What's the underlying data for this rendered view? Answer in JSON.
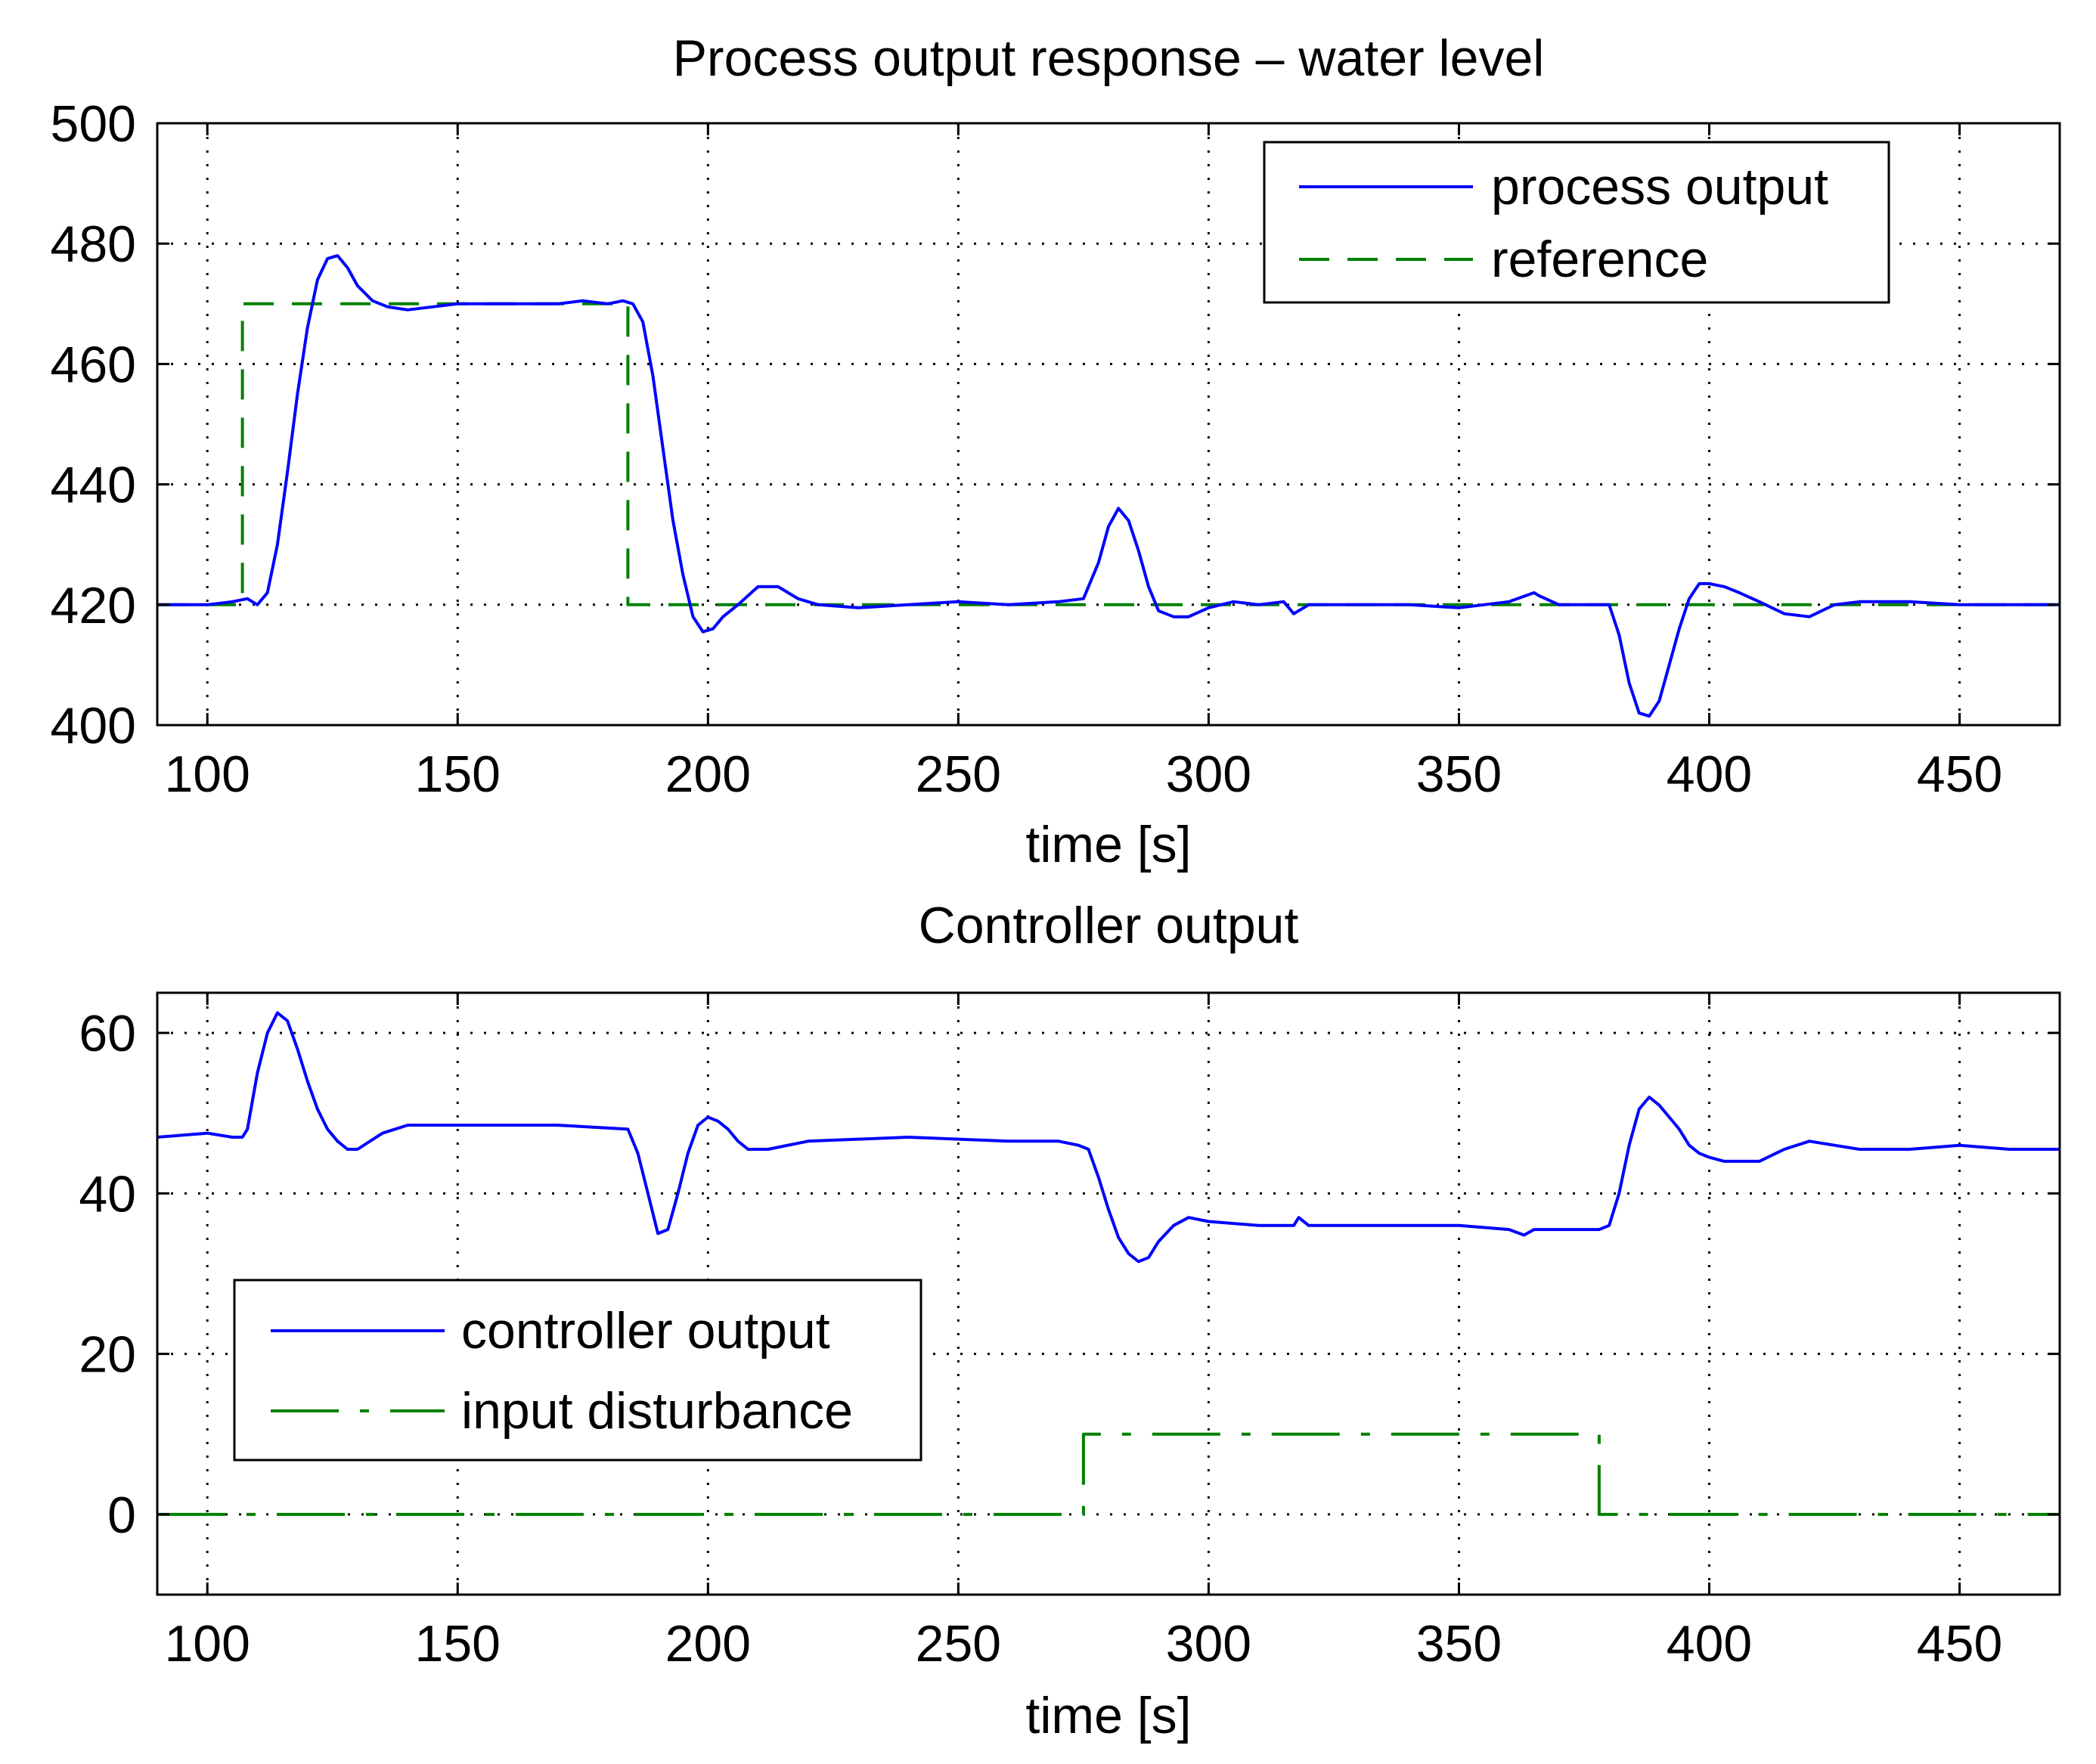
{
  "chart_data": [
    {
      "type": "line",
      "title": "Process output response – water level",
      "xlabel": "time [s]",
      "ylabel": "",
      "xlim": [
        90,
        470
      ],
      "ylim": [
        400,
        500
      ],
      "xticks": [
        100,
        150,
        200,
        250,
        300,
        350,
        400,
        450
      ],
      "yticks": [
        400,
        420,
        440,
        460,
        480,
        500
      ],
      "grid": true,
      "legend_position": "top-right",
      "series": [
        {
          "name": "process output",
          "color": "#0000ff",
          "style": "solid",
          "x": [
            90,
            100,
            105,
            108,
            110,
            112,
            114,
            116,
            118,
            120,
            122,
            124,
            126,
            128,
            130,
            133,
            136,
            140,
            145,
            150,
            160,
            170,
            175,
            180,
            183,
            185,
            187,
            189,
            191,
            193,
            195,
            197,
            199,
            201,
            203,
            206,
            210,
            214,
            218,
            222,
            230,
            240,
            250,
            260,
            270,
            275,
            278,
            280,
            282,
            284,
            286,
            288,
            290,
            293,
            296,
            300,
            305,
            310,
            315,
            317,
            320,
            330,
            340,
            350,
            360,
            365,
            366,
            370,
            378,
            380,
            382,
            384,
            386,
            388,
            390,
            392,
            394,
            396,
            398,
            400,
            403,
            406,
            410,
            415,
            420,
            425,
            430,
            440,
            450,
            460,
            470
          ],
          "y": [
            420,
            420,
            420.5,
            421,
            420,
            422,
            430,
            442,
            455,
            466,
            474,
            477.5,
            478,
            476,
            473,
            470.5,
            469.5,
            469,
            469.5,
            470,
            470,
            470,
            470.5,
            470,
            470.5,
            470,
            467,
            458,
            446,
            434,
            425,
            418,
            415.5,
            416,
            418,
            420,
            423,
            423,
            421,
            420,
            419.5,
            420,
            420.5,
            420,
            420.5,
            421,
            427,
            433,
            436,
            434,
            429,
            423,
            419,
            418,
            418,
            419.5,
            420.5,
            420,
            420.5,
            418.5,
            420,
            420,
            420,
            419.5,
            420.5,
            422,
            421.5,
            420,
            420,
            420,
            415,
            407,
            402,
            401.5,
            404,
            410,
            416,
            421,
            423.5,
            423.5,
            423,
            422,
            420.5,
            418.5,
            418,
            420,
            420.5,
            420.5,
            420,
            420,
            420
          ]
        },
        {
          "name": "reference",
          "color": "#008000",
          "style": "dashed",
          "x": [
            90,
            107,
            107,
            184,
            184,
            470
          ],
          "y": [
            420,
            420,
            470,
            470,
            420,
            420
          ]
        }
      ]
    },
    {
      "type": "line",
      "title": "Controller output",
      "xlabel": "time [s]",
      "ylabel": "",
      "xlim": [
        90,
        470
      ],
      "ylim": [
        -10,
        65
      ],
      "xticks": [
        100,
        150,
        200,
        250,
        300,
        350,
        400,
        450
      ],
      "yticks": [
        0,
        20,
        40,
        60
      ],
      "grid": true,
      "legend_position": "bottom-left",
      "series": [
        {
          "name": "controller output",
          "color": "#0000ff",
          "style": "solid",
          "x": [
            90,
            100,
            105,
            107,
            108,
            110,
            112,
            114,
            116,
            118,
            120,
            122,
            124,
            126,
            128,
            130,
            135,
            140,
            150,
            170,
            184,
            186,
            188,
            190,
            192,
            194,
            196,
            198,
            200,
            202,
            204,
            206,
            208,
            212,
            220,
            240,
            260,
            270,
            274,
            276,
            278,
            280,
            282,
            284,
            286,
            288,
            290,
            293,
            296,
            300,
            310,
            317,
            318,
            320,
            330,
            350,
            360,
            363,
            365,
            370,
            378,
            380,
            382,
            384,
            386,
            388,
            390,
            392,
            394,
            396,
            398,
            400,
            403,
            406,
            410,
            415,
            420,
            425,
            430,
            440,
            450,
            460,
            470
          ],
          "y": [
            47,
            47.5,
            47,
            47,
            48,
            55,
            60,
            62.5,
            61.5,
            58,
            54,
            50.5,
            48,
            46.5,
            45.5,
            45.5,
            47.5,
            48.5,
            48.5,
            48.5,
            48,
            45,
            40,
            35,
            35.5,
            40,
            45,
            48.5,
            49.5,
            49,
            48,
            46.5,
            45.5,
            45.5,
            46.5,
            47,
            46.5,
            46.5,
            46,
            45.5,
            42,
            38,
            34.5,
            32.5,
            31.5,
            32,
            34,
            36,
            37,
            36.5,
            36,
            36,
            37,
            36,
            36,
            36,
            35.5,
            34.8,
            35.5,
            35.5,
            35.5,
            36,
            40,
            46,
            50.5,
            52,
            51,
            49.5,
            48,
            46,
            45,
            44.5,
            44,
            44,
            44,
            45.5,
            46.5,
            46,
            45.5,
            45.5,
            46,
            45.5,
            45.5
          ]
        },
        {
          "name": "input disturbance",
          "color": "#008000",
          "style": "dashdot",
          "x": [
            90,
            275,
            275,
            378,
            378,
            470
          ],
          "y": [
            0,
            0,
            10,
            10,
            0,
            0
          ]
        }
      ]
    }
  ]
}
